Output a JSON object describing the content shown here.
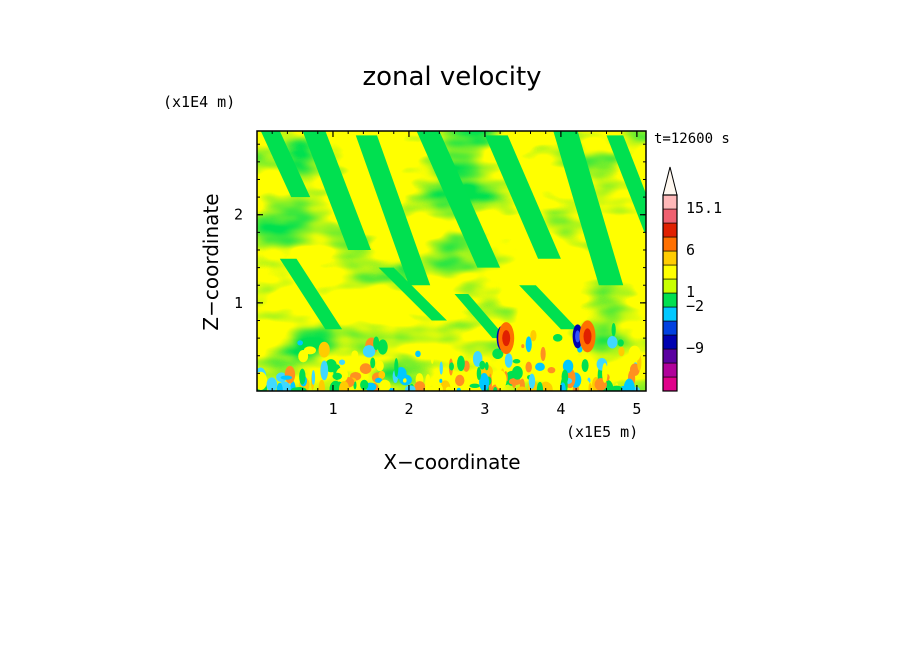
{
  "chart_data": {
    "type": "heatmap",
    "title": "zonal velocity",
    "xlabel": "X−coordinate",
    "ylabel": "Z−coordinate",
    "x_unit": "(x1E5 m)",
    "y_unit": "(x1E4 m)",
    "time_label": "t=12600 s",
    "xlim": [
      0,
      5.12
    ],
    "ylim": [
      0,
      2.95
    ],
    "xticks": [
      1,
      2,
      3,
      4,
      5
    ],
    "xtick_labels": [
      "1",
      "2",
      "3",
      "4",
      "5"
    ],
    "yticks": [
      1,
      2
    ],
    "ytick_labels": [
      "1",
      "2"
    ],
    "dominant_field": {
      "upper_region": "alternating bands of values near 1 (yellow) and between -2 and 1 (green)",
      "lower_region": "small-scale turbulent structure with extremes near the surface"
    },
    "extremes": [
      {
        "x": 3.22,
        "z": 0.6,
        "sign": "negative",
        "approx_value": -9
      },
      {
        "x": 3.28,
        "z": 0.6,
        "sign": "positive",
        "approx_value": 6
      },
      {
        "x": 4.22,
        "z": 0.62,
        "sign": "negative",
        "approx_value": -9
      },
      {
        "x": 4.35,
        "z": 0.62,
        "sign": "positive",
        "approx_value": 6
      }
    ],
    "colorbar": {
      "labels": [
        "15.1",
        "6",
        "1",
        "−2",
        "−9"
      ],
      "colors": [
        "#e0008a",
        "#b0009a",
        "#5a00a0",
        "#0000b0",
        "#0040e0",
        "#00c8ff",
        "#00e050",
        "#c8ff00",
        "#ffff00",
        "#ffcc00",
        "#ff7000",
        "#e02000",
        "#f06070",
        "#ffb8b8"
      ]
    }
  }
}
